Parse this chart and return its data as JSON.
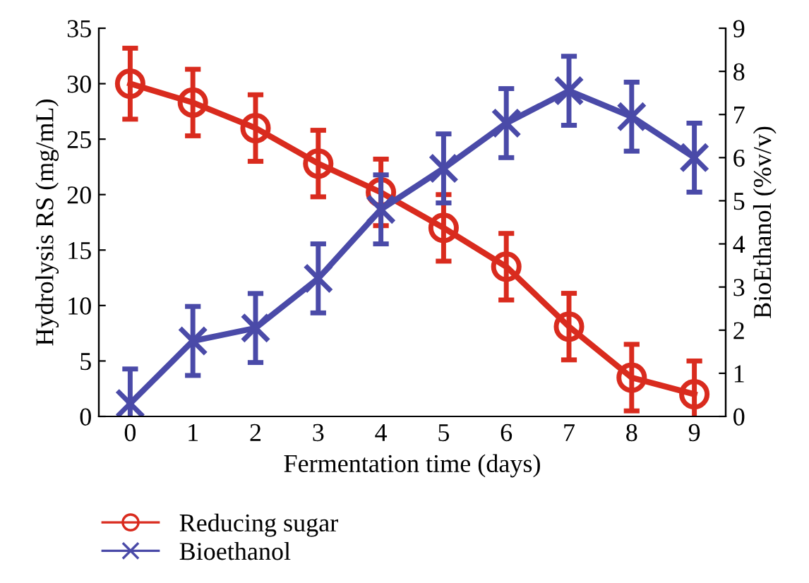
{
  "chart_data": {
    "type": "line",
    "xlabel": "Fermentation time (days)",
    "ylabel": "Hydrolysis RS (mg/mL)",
    "y2label": "BioEthanol (%v/v)",
    "x": [
      0,
      1,
      2,
      3,
      4,
      5,
      6,
      7,
      8,
      9
    ],
    "xlim": [
      -0.5,
      9.5
    ],
    "xticks": [
      0,
      1,
      2,
      3,
      4,
      5,
      6,
      7,
      8,
      9
    ],
    "ylim": [
      0,
      35
    ],
    "yticks": [
      0,
      5,
      10,
      15,
      20,
      25,
      30,
      35
    ],
    "y2lim": [
      0,
      9
    ],
    "y2ticks": [
      0,
      1,
      2,
      3,
      4,
      5,
      6,
      7,
      8,
      9
    ],
    "grid": false,
    "legend": "bottom left",
    "line_style": "solid",
    "series": [
      {
        "name": "Reducing sugar",
        "color": "#d92b1e",
        "marker": "circle",
        "values": [
          30.0,
          28.3,
          26.0,
          22.8,
          20.2,
          17.0,
          13.5,
          8.1,
          3.5,
          2.0
        ],
        "errors": [
          3.2,
          3,
          3,
          3,
          3,
          3,
          3,
          3,
          3,
          3
        ]
      },
      {
        "name": "Bioethanol",
        "color": "#4a4aa8",
        "marker": "cross",
        "axis": "y2",
        "values": [
          0.3,
          1.75,
          2.05,
          3.2,
          4.8,
          5.75,
          6.8,
          7.55,
          6.95,
          6.0
        ],
        "errors": [
          0.8,
          0.8,
          0.8,
          0.8,
          0.8,
          0.8,
          0.8,
          0.8,
          0.8,
          0.8
        ]
      }
    ]
  }
}
